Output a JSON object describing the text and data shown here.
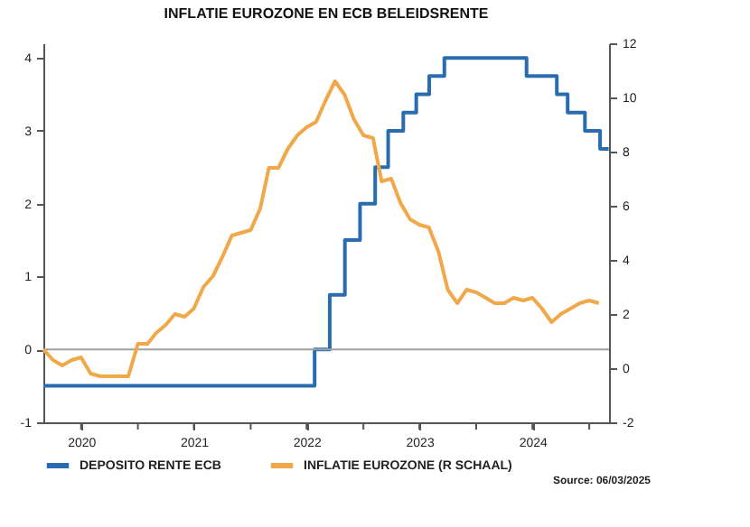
{
  "chart_data": {
    "type": "line",
    "title": "INFLATIE EUROZONE EN ECB BELEIDSRENTE",
    "xlim": [
      "2020-03-01",
      "2025-03-06"
    ],
    "xticks": [
      {
        "value": "2020-07-01",
        "label": "2020"
      },
      {
        "value": "2021-01-01",
        "label": null
      },
      {
        "value": "2021-07-01",
        "label": "2021"
      },
      {
        "value": "2022-01-01",
        "label": null
      },
      {
        "value": "2022-07-01",
        "label": "2022"
      },
      {
        "value": "2023-01-01",
        "label": null
      },
      {
        "value": "2023-07-01",
        "label": "2023"
      },
      {
        "value": "2024-01-01",
        "label": null
      },
      {
        "value": "2024-07-01",
        "label": "2024"
      },
      {
        "value": "2025-01-01",
        "label": null
      }
    ],
    "ylim": [
      -1,
      4.2
    ],
    "yticks": [
      -1,
      0,
      1,
      2,
      3,
      4
    ],
    "y2lim": [
      -2,
      12
    ],
    "y2ticks": [
      -2,
      0,
      2,
      4,
      6,
      8,
      10,
      12
    ],
    "ref_lines": [
      {
        "axis": "y",
        "value": 0,
        "color": "#a0a0a0"
      }
    ],
    "grid": false,
    "legend": "bottom",
    "annotations": [
      "Source: 06/03/2025"
    ],
    "series": [
      {
        "name": "DEPOSITO RENTE ECB",
        "type": "step",
        "color": "#2a6cb0",
        "x": [
          "2020-03-01",
          "2022-07-27",
          "2022-09-14",
          "2022-11-02",
          "2022-12-21",
          "2023-02-08",
          "2023-03-22",
          "2023-05-10",
          "2023-06-21",
          "2023-08-02",
          "2023-09-20",
          "2024-06-12",
          "2024-09-18",
          "2024-10-23",
          "2024-12-18",
          "2025-02-05",
          "2025-03-05"
        ],
        "values": [
          -0.5,
          0,
          0.75,
          1.5,
          2,
          2.5,
          3,
          3.25,
          3.5,
          3.75,
          4,
          3.75,
          3.5,
          3.25,
          3,
          2.75,
          2.75
        ]
      },
      {
        "name": "INFLATIE EUROZONE (R SCHAAL)",
        "type": "line",
        "axis": "y2",
        "color": "#f0a848",
        "x": [
          "2020-03",
          "2020-04",
          "2020-05",
          "2020-06",
          "2020-07",
          "2020-08",
          "2020-09",
          "2020-10",
          "2020-11",
          "2020-12",
          "2021-01",
          "2021-02",
          "2021-03",
          "2021-04",
          "2021-05",
          "2021-06",
          "2021-07",
          "2021-08",
          "2021-09",
          "2021-10",
          "2021-11",
          "2021-12",
          "2022-01",
          "2022-02",
          "2022-03",
          "2022-04",
          "2022-05",
          "2022-06",
          "2022-07",
          "2022-08",
          "2022-09",
          "2022-10",
          "2022-11",
          "2022-12",
          "2023-01",
          "2023-02",
          "2023-03",
          "2023-04",
          "2023-05",
          "2023-06",
          "2023-07",
          "2023-08",
          "2023-09",
          "2023-10",
          "2023-11",
          "2023-12",
          "2024-01",
          "2024-02",
          "2024-03",
          "2024-04",
          "2024-05",
          "2024-06",
          "2024-07",
          "2024-08",
          "2024-09",
          "2024-10",
          "2024-11",
          "2024-12",
          "2025-01",
          "2025-02"
        ],
        "values": [
          0.7,
          0.3,
          0.1,
          0.3,
          0.4,
          -0.2,
          -0.3,
          -0.3,
          -0.3,
          -0.3,
          0.9,
          0.9,
          1.3,
          1.6,
          2.0,
          1.9,
          2.2,
          3.0,
          3.4,
          4.1,
          4.9,
          5.0,
          5.1,
          5.9,
          7.4,
          7.4,
          8.1,
          8.6,
          8.9,
          9.1,
          9.9,
          10.6,
          10.1,
          9.2,
          8.6,
          8.5,
          6.9,
          7.0,
          6.1,
          5.5,
          5.3,
          5.2,
          4.3,
          2.9,
          2.4,
          2.9,
          2.8,
          2.6,
          2.4,
          2.4,
          2.6,
          2.5,
          2.6,
          2.2,
          1.7,
          2.0,
          2.2,
          2.4,
          2.5,
          2.4
        ]
      }
    ]
  }
}
